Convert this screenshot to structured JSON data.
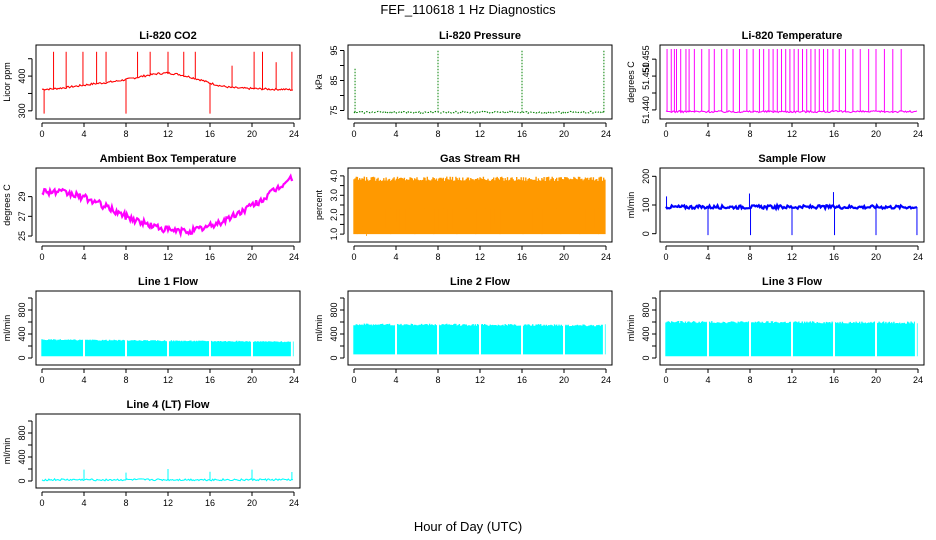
{
  "figure": {
    "title": "FEF_110618  1 Hz Diagnostics",
    "xlabel": "Hour of Day (UTC)"
  },
  "chart_data": [
    {
      "type": "line",
      "title": "Li-820 CO2",
      "ylabel": "Licor ppm",
      "color": "#ff0000",
      "xlim": [
        0,
        24
      ],
      "ylim": [
        288,
        478
      ],
      "xticks": [
        0,
        4,
        8,
        12,
        16,
        20,
        24
      ],
      "yticks": [
        300,
        350,
        400,
        450
      ],
      "ytick_labels": [
        "300",
        "",
        "400",
        ""
      ],
      "series": [
        {
          "x": [
            0,
            1,
            2,
            3,
            4,
            5,
            6,
            7,
            8,
            9,
            10,
            11,
            12,
            13,
            14,
            15,
            16,
            17,
            18,
            19,
            20,
            21,
            22,
            23,
            24
          ],
          "y": [
            362,
            363,
            366,
            370,
            374,
            378,
            381,
            385,
            390,
            396,
            402,
            407,
            409,
            405,
            398,
            390,
            380,
            372,
            367,
            365,
            364,
            363,
            362,
            362,
            360
          ],
          "spikes_x": [
            0.2,
            1.1,
            2.3,
            3.9,
            5.2,
            6.1,
            8.0,
            9.1,
            10.3,
            12.0,
            13.5,
            14.6,
            16.0,
            18.1,
            20.2,
            21.0,
            22.3,
            23.8
          ],
          "spikes_y": [
            292,
            470,
            470,
            470,
            470,
            470,
            292,
            470,
            470,
            470,
            470,
            470,
            292,
            430,
            470,
            470,
            440,
            470
          ]
        }
      ]
    },
    {
      "type": "line",
      "title": "Li-820 Pressure",
      "ylabel": "kPa",
      "color": "#008000",
      "line_style": "dotted",
      "xlim": [
        0,
        24
      ],
      "ylim": [
        73.5,
        95.5
      ],
      "xticks": [
        0,
        4,
        8,
        12,
        16,
        20,
        24
      ],
      "yticks": [
        75,
        80,
        85,
        90,
        95
      ],
      "ytick_labels": [
        "75",
        "",
        "85",
        "",
        "95"
      ],
      "series": [
        {
          "x": [
            0,
            24
          ],
          "y": [
            74.4,
            74.4
          ],
          "spikes_x": [
            0.1,
            8.0,
            16.0,
            23.8
          ],
          "spikes_y": [
            89,
            95,
            95,
            95
          ]
        }
      ]
    },
    {
      "type": "line",
      "title": "Li-820 Temperature",
      "ylabel": "degrees C",
      "color": "#ff00ff",
      "xlim": [
        0,
        24
      ],
      "ylim": [
        51.4385,
        51.458
      ],
      "xticks": [
        0,
        4,
        8,
        12,
        16,
        20,
        24
      ],
      "yticks": [
        51.44,
        51.445,
        51.45,
        51.455
      ],
      "ytick_labels": [
        "51.440",
        "",
        "51.450",
        "51.455"
      ],
      "series": [
        {
          "x": [
            0,
            24
          ],
          "y": [
            51.4395,
            51.4395
          ],
          "spikes_x": [
            0.1,
            0.5,
            0.8,
            1.0,
            1.4,
            1.9,
            2.2,
            2.7,
            3.4,
            4.1,
            4.6,
            5.3,
            5.8,
            6.4,
            7.0,
            7.7,
            8.3,
            8.9,
            9.3,
            9.8,
            10.2,
            10.6,
            11.0,
            11.4,
            11.8,
            12.2,
            12.6,
            13.0,
            13.4,
            13.8,
            14.2,
            14.6,
            15.0,
            15.4,
            15.9,
            16.5,
            17.1,
            17.8,
            18.5,
            19.3,
            20.0,
            20.8,
            21.6,
            22.4
          ],
          "spikes_y": [
            51.458,
            51.458,
            51.458,
            51.458,
            51.458,
            51.458,
            51.458,
            51.458,
            51.458,
            51.458,
            51.458,
            51.458,
            51.458,
            51.458,
            51.458,
            51.458,
            51.458,
            51.458,
            51.458,
            51.458,
            51.458,
            51.458,
            51.458,
            51.458,
            51.458,
            51.458,
            51.458,
            51.458,
            51.458,
            51.458,
            51.458,
            51.458,
            51.458,
            51.458,
            51.458,
            51.458,
            51.458,
            51.458,
            51.458,
            51.458,
            51.458,
            51.458,
            51.458,
            51.458
          ]
        }
      ]
    },
    {
      "type": "line",
      "title": "Ambient Box Temperature",
      "ylabel": "degrees C",
      "color": "#ff00ff",
      "xlim": [
        0,
        24
      ],
      "ylim": [
        24.8,
        31.5
      ],
      "xticks": [
        0,
        4,
        8,
        12,
        16,
        20,
        24
      ],
      "yticks": [
        25,
        27,
        29
      ],
      "ytick_labels": [
        "25",
        "27",
        "29"
      ],
      "series": [
        {
          "x": [
            0,
            1,
            2,
            3,
            4,
            5,
            6,
            7,
            8,
            9,
            10,
            11,
            12,
            13,
            14,
            15,
            16,
            17,
            18,
            19,
            20,
            21,
            22,
            23,
            24
          ],
          "y": [
            29.6,
            29.5,
            29.4,
            29.2,
            28.9,
            28.5,
            28.0,
            27.5,
            27.0,
            26.6,
            26.2,
            25.9,
            25.6,
            25.5,
            25.5,
            25.7,
            26.0,
            26.4,
            26.9,
            27.5,
            28.1,
            28.7,
            29.5,
            30.3,
            31.1
          ],
          "band": 0.35
        }
      ]
    },
    {
      "type": "scatter",
      "title": "Gas Stream RH",
      "ylabel": "percent",
      "color": "#ff9900",
      "xlim": [
        0,
        24
      ],
      "ylim": [
        0.8,
        4.2
      ],
      "xticks": [
        0,
        4,
        8,
        12,
        16,
        20,
        24
      ],
      "yticks": [
        1.0,
        1.5,
        2.0,
        2.5,
        3.0,
        3.5,
        4.0
      ],
      "ytick_labels": [
        "1.0",
        "",
        "2.0",
        "",
        "3.0",
        "",
        "4.0"
      ],
      "series": [
        {
          "x": [
            0,
            24
          ],
          "y_high": [
            3.85,
            3.85
          ],
          "y_low": [
            1.0,
            1.0
          ],
          "spikes_x": [
            0.3,
            0.8,
            1.2,
            1.7,
            2.1,
            2.6,
            3.0,
            3.5,
            4.0,
            4.4,
            4.9,
            5.3,
            5.8,
            6.2,
            6.7,
            7.1,
            7.6,
            8.0,
            8.5,
            8.9,
            9.4,
            9.8,
            10.3,
            10.7,
            11.2,
            11.6,
            12.1,
            12.5,
            13.0,
            13.4,
            13.9,
            14.3,
            14.8,
            15.2,
            15.7,
            16.1,
            16.6,
            17.0,
            17.5,
            17.9,
            18.4,
            18.8,
            19.3,
            19.7,
            20.2,
            20.6,
            21.1,
            21.5,
            22.0,
            22.4,
            22.9,
            23.3,
            23.8
          ],
          "spikes_y": [
            1.0,
            1.4,
            0.9,
            1.2,
            2.0,
            1.1,
            1.3,
            1.0,
            1.6,
            1.1,
            1.2,
            1.8,
            1.0,
            1.3,
            1.1,
            1.4,
            1.0,
            1.2,
            1.5,
            1.1,
            1.3,
            1.0,
            1.2,
            1.1,
            1.4,
            1.0,
            1.3,
            1.2,
            1.1,
            1.5,
            1.0,
            1.2,
            1.3,
            1.1,
            1.4,
            1.0,
            1.2,
            1.1,
            1.3,
            1.0,
            1.5,
            1.1,
            1.2,
            1.0,
            1.3,
            1.1,
            1.4,
            1.0,
            1.2,
            1.1,
            1.3,
            1.0,
            1.1
          ]
        }
      ]
    },
    {
      "type": "line",
      "title": "Sample Flow",
      "ylabel": "ml/min",
      "color": "#0000ff",
      "xlim": [
        0,
        24
      ],
      "ylim": [
        -15,
        215
      ],
      "xticks": [
        0,
        4,
        8,
        12,
        16,
        20,
        24
      ],
      "yticks": [
        0,
        100,
        200
      ],
      "ytick_labels": [
        "0",
        "100",
        "200"
      ],
      "series": [
        {
          "x": [
            0,
            24
          ],
          "y": [
            93,
            93
          ],
          "band": 6,
          "spikes_x": [
            0.05,
            4.0,
            7.95,
            8.05,
            12.0,
            15.95,
            16.05,
            20.0,
            23.9
          ],
          "spikes_y": [
            130,
            -5,
            140,
            -5,
            -5,
            145,
            -5,
            -5,
            -5
          ]
        }
      ]
    },
    {
      "type": "area",
      "title": "Line 1 Flow",
      "ylabel": "ml/min",
      "color": "#00ffff",
      "xlim": [
        0,
        24
      ],
      "ylim": [
        -50,
        1050
      ],
      "xticks": [
        0,
        4,
        8,
        12,
        16,
        20,
        24
      ],
      "yticks": [
        0,
        200,
        400,
        600,
        800,
        1000
      ],
      "ytick_labels": [
        "0",
        "",
        "400",
        "",
        "800",
        ""
      ],
      "series": [
        {
          "x": [
            0,
            24
          ],
          "y_high": [
            305,
            270
          ],
          "y_low": [
            30,
            30
          ],
          "gaps_x": [
            4.0,
            8.0,
            12.0,
            16.0,
            20.0,
            23.8
          ]
        }
      ]
    },
    {
      "type": "area",
      "title": "Line 2 Flow",
      "ylabel": "ml/min",
      "color": "#00ffff",
      "xlim": [
        0,
        24
      ],
      "ylim": [
        -50,
        1050
      ],
      "xticks": [
        0,
        4,
        8,
        12,
        16,
        20,
        24
      ],
      "yticks": [
        0,
        200,
        400,
        600,
        800,
        1000
      ],
      "ytick_labels": [
        "0",
        "",
        "400",
        "",
        "800",
        ""
      ],
      "series": [
        {
          "x": [
            0,
            24
          ],
          "y_high": [
            560,
            545
          ],
          "y_low": [
            60,
            60
          ],
          "gaps_x": [
            4.0,
            8.0,
            12.0,
            16.0,
            20.0,
            23.8
          ]
        }
      ]
    },
    {
      "type": "area",
      "title": "Line 3 Flow",
      "ylabel": "ml/min",
      "color": "#00ffff",
      "xlim": [
        0,
        24
      ],
      "ylim": [
        -50,
        1050
      ],
      "xticks": [
        0,
        4,
        8,
        12,
        16,
        20,
        24
      ],
      "yticks": [
        0,
        200,
        400,
        600,
        800,
        1000
      ],
      "ytick_labels": [
        "0",
        "",
        "400",
        "",
        "800",
        ""
      ],
      "series": [
        {
          "x": [
            0,
            24
          ],
          "y_high": [
            600,
            590
          ],
          "y_low": [
            30,
            30
          ],
          "gaps_x": [
            4.0,
            8.0,
            12.0,
            16.0,
            20.0,
            23.8
          ]
        }
      ]
    },
    {
      "type": "line",
      "title": "Line 4 (LT) Flow",
      "ylabel": "ml/min",
      "color": "#00ffff",
      "xlim": [
        0,
        24
      ],
      "ylim": [
        -50,
        1050
      ],
      "xticks": [
        0,
        4,
        8,
        12,
        16,
        20,
        24
      ],
      "yticks": [
        0,
        200,
        400,
        600,
        800,
        1000
      ],
      "ytick_labels": [
        "0",
        "",
        "400",
        "",
        "800",
        ""
      ],
      "series": [
        {
          "x": [
            0,
            24
          ],
          "y": [
            20,
            20
          ],
          "spikes_x": [
            4.0,
            8.0,
            12.0,
            16.0,
            20.0,
            23.8
          ],
          "spikes_y": [
            190,
            140,
            200,
            155,
            190,
            150
          ]
        }
      ]
    }
  ]
}
